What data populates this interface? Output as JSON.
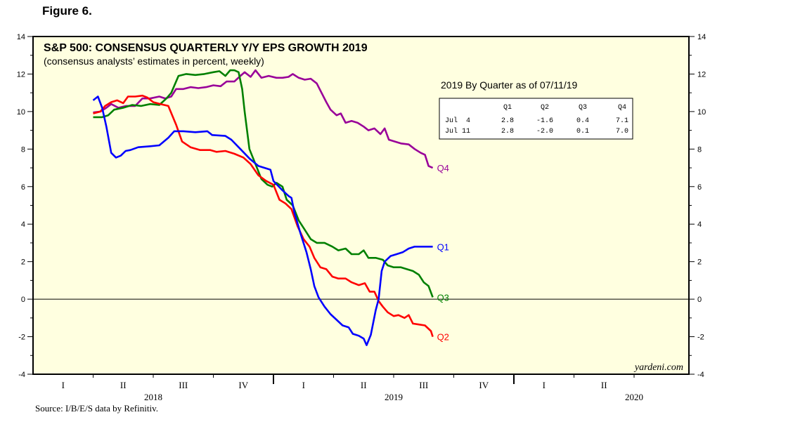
{
  "figure_label": "Figure 6.",
  "source_note": "Source: I/B/E/S data by Refinitiv.",
  "watermark": "yardeni.com",
  "colors": {
    "plot_background": "#ffffe0",
    "Q1": "#0000ff",
    "Q2": "#ff0000",
    "Q3": "#008000",
    "Q4": "#990099"
  },
  "summary_table": {
    "title": "2019 By Quarter as of 07/11/19",
    "headers": [
      "Q1",
      "Q2",
      "Q3",
      "Q4"
    ],
    "rows": [
      {
        "label": "Jul  4",
        "values": [
          "2.8",
          "-1.6",
          "0.4",
          "7.1"
        ]
      },
      {
        "label": "Jul 11",
        "values": [
          "2.8",
          "-2.0",
          "0.1",
          "7.0"
        ]
      }
    ]
  },
  "chart_data": {
    "type": "line",
    "title": "S&P 500: CONSENSUS QUARTERLY Y/Y EPS GROWTH 2019",
    "subtitle": "(consensus analysts’ estimates in percent, weekly)",
    "xlabel": "",
    "ylabel": "",
    "x_unit": "quarters since start of 2018",
    "xlim": [
      0,
      12
    ],
    "ylim": [
      -4,
      14
    ],
    "yticks": [
      -4,
      -2,
      0,
      2,
      4,
      6,
      8,
      10,
      12,
      14
    ],
    "quarter_labels": [
      "I",
      "II",
      "III",
      "IV",
      "I",
      "II",
      "III",
      "IV",
      "I",
      "II"
    ],
    "year_labels": [
      {
        "text": "2018",
        "x": 2
      },
      {
        "text": "2019",
        "x": 6
      },
      {
        "text": "2020",
        "x": 10
      }
    ],
    "zero_line": true,
    "grid": false,
    "series": [
      {
        "name": "Q1",
        "points": [
          [
            1.0,
            10.6
          ],
          [
            1.08,
            10.8
          ],
          [
            1.15,
            10.2
          ],
          [
            1.22,
            9.2
          ],
          [
            1.3,
            7.8
          ],
          [
            1.38,
            7.55
          ],
          [
            1.46,
            7.65
          ],
          [
            1.54,
            7.9
          ],
          [
            1.62,
            7.95
          ],
          [
            1.75,
            8.1
          ],
          [
            1.95,
            8.15
          ],
          [
            2.1,
            8.2
          ],
          [
            2.25,
            8.6
          ],
          [
            2.35,
            8.95
          ],
          [
            2.5,
            8.95
          ],
          [
            2.7,
            8.9
          ],
          [
            2.9,
            8.95
          ],
          [
            2.98,
            8.75
          ],
          [
            3.2,
            8.7
          ],
          [
            3.3,
            8.5
          ],
          [
            3.45,
            8.0
          ],
          [
            3.6,
            7.5
          ],
          [
            3.75,
            7.1
          ],
          [
            3.95,
            6.9
          ],
          [
            4.0,
            6.3
          ],
          [
            4.15,
            5.8
          ],
          [
            4.25,
            5.5
          ],
          [
            4.3,
            5.4
          ],
          [
            4.35,
            4.6
          ],
          [
            4.45,
            3.5
          ],
          [
            4.55,
            2.5
          ],
          [
            4.62,
            1.6
          ],
          [
            4.68,
            0.7
          ],
          [
            4.75,
            0.1
          ],
          [
            4.85,
            -0.4
          ],
          [
            4.95,
            -0.8
          ],
          [
            5.05,
            -1.1
          ],
          [
            5.15,
            -1.4
          ],
          [
            5.25,
            -1.5
          ],
          [
            5.32,
            -1.85
          ],
          [
            5.42,
            -1.95
          ],
          [
            5.5,
            -2.1
          ],
          [
            5.55,
            -2.45
          ],
          [
            5.62,
            -1.9
          ],
          [
            5.7,
            -0.6
          ],
          [
            5.75,
            0.0
          ],
          [
            5.8,
            1.5
          ],
          [
            5.85,
            2.0
          ],
          [
            5.95,
            2.3
          ],
          [
            6.05,
            2.4
          ],
          [
            6.15,
            2.5
          ],
          [
            6.25,
            2.7
          ],
          [
            6.35,
            2.8
          ],
          [
            6.5,
            2.8
          ],
          [
            6.65,
            2.8
          ]
        ]
      },
      {
        "name": "Q2",
        "points": [
          [
            1.0,
            9.9
          ],
          [
            1.12,
            10.0
          ],
          [
            1.2,
            10.3
          ],
          [
            1.3,
            10.5
          ],
          [
            1.4,
            10.6
          ],
          [
            1.5,
            10.45
          ],
          [
            1.58,
            10.8
          ],
          [
            1.7,
            10.8
          ],
          [
            1.82,
            10.85
          ],
          [
            1.9,
            10.75
          ],
          [
            2.0,
            10.5
          ],
          [
            2.12,
            10.4
          ],
          [
            2.25,
            10.3
          ],
          [
            2.38,
            9.3
          ],
          [
            2.48,
            8.4
          ],
          [
            2.62,
            8.1
          ],
          [
            2.78,
            7.95
          ],
          [
            2.95,
            7.95
          ],
          [
            3.05,
            7.85
          ],
          [
            3.2,
            7.9
          ],
          [
            3.35,
            7.75
          ],
          [
            3.5,
            7.55
          ],
          [
            3.62,
            7.2
          ],
          [
            3.75,
            6.6
          ],
          [
            3.88,
            6.3
          ],
          [
            4.0,
            6.1
          ],
          [
            4.1,
            5.3
          ],
          [
            4.2,
            5.1
          ],
          [
            4.3,
            4.8
          ],
          [
            4.4,
            3.9
          ],
          [
            4.5,
            3.2
          ],
          [
            4.6,
            2.8
          ],
          [
            4.68,
            2.2
          ],
          [
            4.78,
            1.7
          ],
          [
            4.88,
            1.6
          ],
          [
            4.98,
            1.2
          ],
          [
            5.08,
            1.1
          ],
          [
            5.2,
            1.1
          ],
          [
            5.3,
            0.9
          ],
          [
            5.42,
            0.75
          ],
          [
            5.52,
            0.85
          ],
          [
            5.6,
            0.4
          ],
          [
            5.68,
            0.4
          ],
          [
            5.75,
            -0.1
          ],
          [
            5.82,
            -0.4
          ],
          [
            5.9,
            -0.7
          ],
          [
            6.0,
            -0.9
          ],
          [
            6.08,
            -0.85
          ],
          [
            6.18,
            -1.0
          ],
          [
            6.25,
            -0.85
          ],
          [
            6.32,
            -1.3
          ],
          [
            6.42,
            -1.35
          ],
          [
            6.52,
            -1.4
          ],
          [
            6.62,
            -1.7
          ],
          [
            6.65,
            -2.0
          ]
        ]
      },
      {
        "name": "Q3",
        "points": [
          [
            1.0,
            9.7
          ],
          [
            1.15,
            9.7
          ],
          [
            1.25,
            9.8
          ],
          [
            1.35,
            10.1
          ],
          [
            1.5,
            10.2
          ],
          [
            1.65,
            10.35
          ],
          [
            1.8,
            10.3
          ],
          [
            1.95,
            10.4
          ],
          [
            2.1,
            10.35
          ],
          [
            2.22,
            10.7
          ],
          [
            2.3,
            11.0
          ],
          [
            2.42,
            11.9
          ],
          [
            2.55,
            12.0
          ],
          [
            2.7,
            11.95
          ],
          [
            2.85,
            12.0
          ],
          [
            3.0,
            12.1
          ],
          [
            3.1,
            12.15
          ],
          [
            3.2,
            11.9
          ],
          [
            3.28,
            12.2
          ],
          [
            3.35,
            12.2
          ],
          [
            3.42,
            12.1
          ],
          [
            3.48,
            11.2
          ],
          [
            3.52,
            10.0
          ],
          [
            3.6,
            8.0
          ],
          [
            3.7,
            7.2
          ],
          [
            3.8,
            6.4
          ],
          [
            3.9,
            6.1
          ],
          [
            3.98,
            6.0
          ],
          [
            4.05,
            6.2
          ],
          [
            4.15,
            6.0
          ],
          [
            4.22,
            5.3
          ],
          [
            4.32,
            5.0
          ],
          [
            4.42,
            4.2
          ],
          [
            4.52,
            3.7
          ],
          [
            4.62,
            3.2
          ],
          [
            4.72,
            3.0
          ],
          [
            4.85,
            3.0
          ],
          [
            4.98,
            2.8
          ],
          [
            5.08,
            2.6
          ],
          [
            5.2,
            2.7
          ],
          [
            5.3,
            2.4
          ],
          [
            5.42,
            2.4
          ],
          [
            5.5,
            2.6
          ],
          [
            5.58,
            2.2
          ],
          [
            5.7,
            2.2
          ],
          [
            5.82,
            2.1
          ],
          [
            5.9,
            1.8
          ],
          [
            6.0,
            1.7
          ],
          [
            6.12,
            1.7
          ],
          [
            6.22,
            1.6
          ],
          [
            6.32,
            1.5
          ],
          [
            6.42,
            1.3
          ],
          [
            6.5,
            0.9
          ],
          [
            6.58,
            0.7
          ],
          [
            6.65,
            0.1
          ]
        ]
      },
      {
        "name": "Q4",
        "points": [
          [
            1.0,
            9.95
          ],
          [
            1.12,
            10.0
          ],
          [
            1.22,
            10.2
          ],
          [
            1.3,
            10.4
          ],
          [
            1.42,
            10.2
          ],
          [
            1.55,
            10.3
          ],
          [
            1.7,
            10.3
          ],
          [
            1.82,
            10.7
          ],
          [
            1.95,
            10.7
          ],
          [
            2.1,
            10.8
          ],
          [
            2.2,
            10.7
          ],
          [
            2.3,
            10.8
          ],
          [
            2.38,
            11.2
          ],
          [
            2.5,
            11.2
          ],
          [
            2.62,
            11.3
          ],
          [
            2.75,
            11.25
          ],
          [
            2.88,
            11.3
          ],
          [
            3.0,
            11.4
          ],
          [
            3.12,
            11.35
          ],
          [
            3.22,
            11.6
          ],
          [
            3.35,
            11.6
          ],
          [
            3.45,
            11.9
          ],
          [
            3.52,
            12.1
          ],
          [
            3.62,
            11.85
          ],
          [
            3.7,
            12.2
          ],
          [
            3.8,
            11.8
          ],
          [
            3.92,
            11.9
          ],
          [
            4.05,
            11.8
          ],
          [
            4.15,
            11.8
          ],
          [
            4.25,
            11.85
          ],
          [
            4.32,
            12.0
          ],
          [
            4.42,
            11.8
          ],
          [
            4.52,
            11.7
          ],
          [
            4.62,
            11.75
          ],
          [
            4.72,
            11.5
          ],
          [
            4.8,
            11.0
          ],
          [
            4.88,
            10.5
          ],
          [
            4.95,
            10.1
          ],
          [
            5.05,
            9.8
          ],
          [
            5.12,
            9.9
          ],
          [
            5.2,
            9.4
          ],
          [
            5.3,
            9.5
          ],
          [
            5.4,
            9.4
          ],
          [
            5.5,
            9.2
          ],
          [
            5.58,
            9.0
          ],
          [
            5.68,
            9.1
          ],
          [
            5.78,
            8.8
          ],
          [
            5.85,
            9.1
          ],
          [
            5.92,
            8.5
          ],
          [
            6.02,
            8.4
          ],
          [
            6.12,
            8.3
          ],
          [
            6.25,
            8.25
          ],
          [
            6.35,
            8.0
          ],
          [
            6.45,
            7.8
          ],
          [
            6.52,
            7.7
          ],
          [
            6.58,
            7.1
          ],
          [
            6.65,
            7.0
          ]
        ]
      }
    ]
  }
}
